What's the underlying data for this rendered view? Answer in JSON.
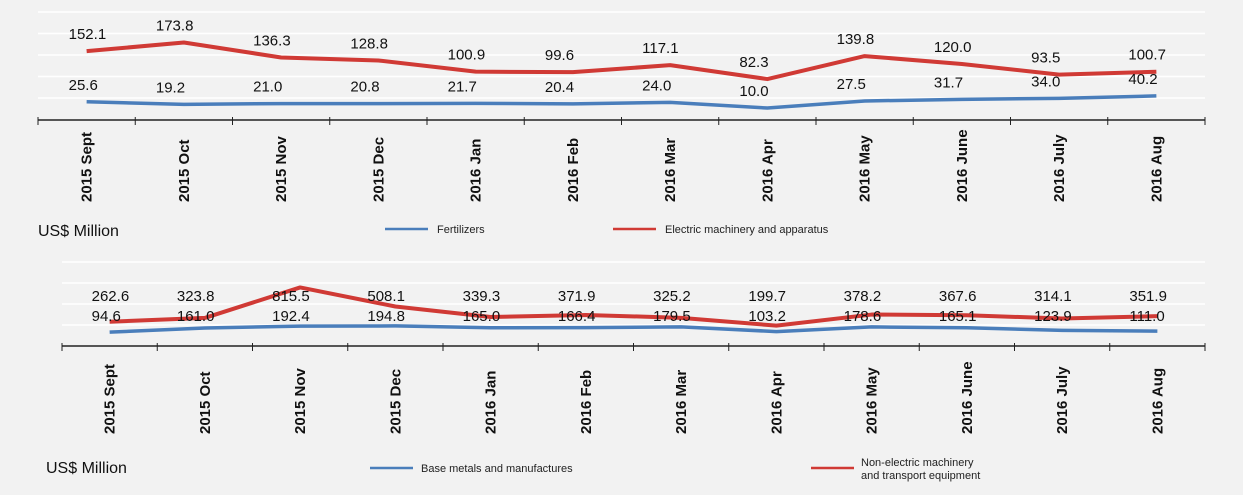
{
  "chart_data": [
    {
      "type": "line",
      "categories": [
        "2015 Sept",
        "2015 Oct",
        "2015 Nov",
        "2015 Dec",
        "2016 Jan",
        "2016 Feb",
        "2016 Mar",
        "2016 Apr",
        "2016 May",
        "2016 June",
        "2016 July",
        "2016 Aug"
      ],
      "series": [
        {
          "name": "Fertilizers",
          "color": "#4a7ebb",
          "values": [
            25.6,
            19.2,
            21.0,
            20.8,
            21.7,
            20.4,
            24.0,
            10.0,
            27.5,
            31.7,
            34.0,
            40.2
          ],
          "labels": [
            "25.6",
            "19.2",
            "21.0",
            "20.8",
            "21.7",
            "20.4",
            "24.0",
            "10.0",
            "27.5",
            "31.7",
            "34.0",
            "40.2"
          ]
        },
        {
          "name": "Electric machinery and apparatus",
          "color": "#d03a35",
          "values": [
            152.1,
            173.8,
            136.3,
            128.8,
            100.9,
            99.6,
            117.1,
            82.3,
            139.8,
            120.0,
            93.5,
            100.7
          ],
          "labels": [
            "152.1",
            "173.8",
            "136.3",
            "128.8",
            "100.9",
            "99.6",
            "117.1",
            "82.3",
            "139.8",
            "120.0",
            "93.5",
            "100.7"
          ]
        }
      ],
      "ylabel": "US$ Million",
      "legend": "bottom",
      "grid": "horizontal"
    },
    {
      "type": "line",
      "categories": [
        "2015 Sept",
        "2015 Oct",
        "2015 Nov",
        "2015 Dec",
        "2016 Jan",
        "2016 Feb",
        "2016 Mar",
        "2016 Apr",
        "2016 May",
        "2016 June",
        "2016 July",
        "2016 Aug"
      ],
      "series": [
        {
          "name": "Base metals and manufactures",
          "color": "#4a7ebb",
          "values": [
            94.6,
            161.0,
            192.4,
            194.8,
            165.0,
            166.4,
            179.5,
            103.2,
            178.6,
            165.1,
            123.9,
            111.0
          ],
          "labels": [
            "94.6",
            "161.0",
            "192.4",
            "194.8",
            "165.0",
            "166.4",
            "179.5",
            "103.2",
            "178.6",
            "165.1",
            "123.9",
            "111.0"
          ]
        },
        {
          "name": "Non-electric machinery and transport equipment",
          "name_lines": [
            "Non-electric machinery",
            "and transport equipment"
          ],
          "color": "#d03a35",
          "values": [
            262.6,
            323.8,
            815.5,
            508.1,
            339.3,
            371.9,
            325.2,
            199.7,
            378.2,
            367.6,
            314.1,
            351.9
          ],
          "labels": [
            "262.6",
            "323.8",
            "815.5",
            "508.1",
            "339.3",
            "371.9",
            "325.2",
            "199.7",
            "378.2",
            "367.6",
            "314.1",
            "351.9"
          ]
        }
      ],
      "ylabel": "US$ Million",
      "legend": "bottom",
      "grid": "horizontal"
    }
  ]
}
